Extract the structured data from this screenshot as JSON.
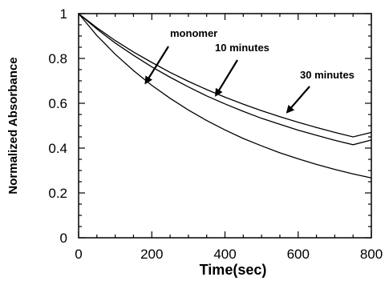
{
  "chart_data": {
    "type": "line",
    "title": "",
    "xlabel": "Time(sec)",
    "ylabel": "Normalized Absorbance",
    "xlim": [
      0,
      800
    ],
    "ylim": [
      0,
      1
    ],
    "xticks": [
      0,
      200,
      400,
      600,
      800
    ],
    "yticks": [
      0,
      0.2,
      0.4,
      0.6,
      0.8,
      1
    ],
    "xtick_labels": [
      "0",
      "200",
      "400",
      "600",
      "800"
    ],
    "ytick_labels": [
      "0",
      "0.2",
      "0.4",
      "0.6",
      "0.8",
      "1"
    ],
    "grid": false,
    "legend": "none",
    "x": [
      0,
      50,
      100,
      150,
      200,
      250,
      300,
      350,
      400,
      450,
      500,
      550,
      600,
      650,
      700,
      750,
      800
    ],
    "series": [
      {
        "values": [
          1.0,
          0.902,
          0.819,
          0.746,
          0.68,
          0.622,
          0.57,
          0.523,
          0.481,
          0.443,
          0.41,
          0.379,
          0.352,
          0.327,
          0.305,
          0.285,
          0.267
        ]
      },
      {
        "values": [
          1.0,
          0.931,
          0.869,
          0.814,
          0.762,
          0.716,
          0.673,
          0.633,
          0.597,
          0.564,
          0.533,
          0.506,
          0.48,
          0.457,
          0.435,
          0.415,
          0.436
        ]
      },
      {
        "values": [
          1.0,
          0.937,
          0.88,
          0.829,
          0.782,
          0.738,
          0.698,
          0.661,
          0.627,
          0.596,
          0.567,
          0.54,
          0.515,
          0.492,
          0.47,
          0.45,
          0.47
        ]
      }
    ],
    "annotations": [
      {
        "text": "monomer",
        "arrow_to": [
          183,
          0.69
        ]
      },
      {
        "text": "10 minutes",
        "arrow_to": [
          375,
          0.635
        ]
      },
      {
        "text": "30 minutes",
        "arrow_to": [
          570,
          0.56
        ]
      }
    ]
  }
}
